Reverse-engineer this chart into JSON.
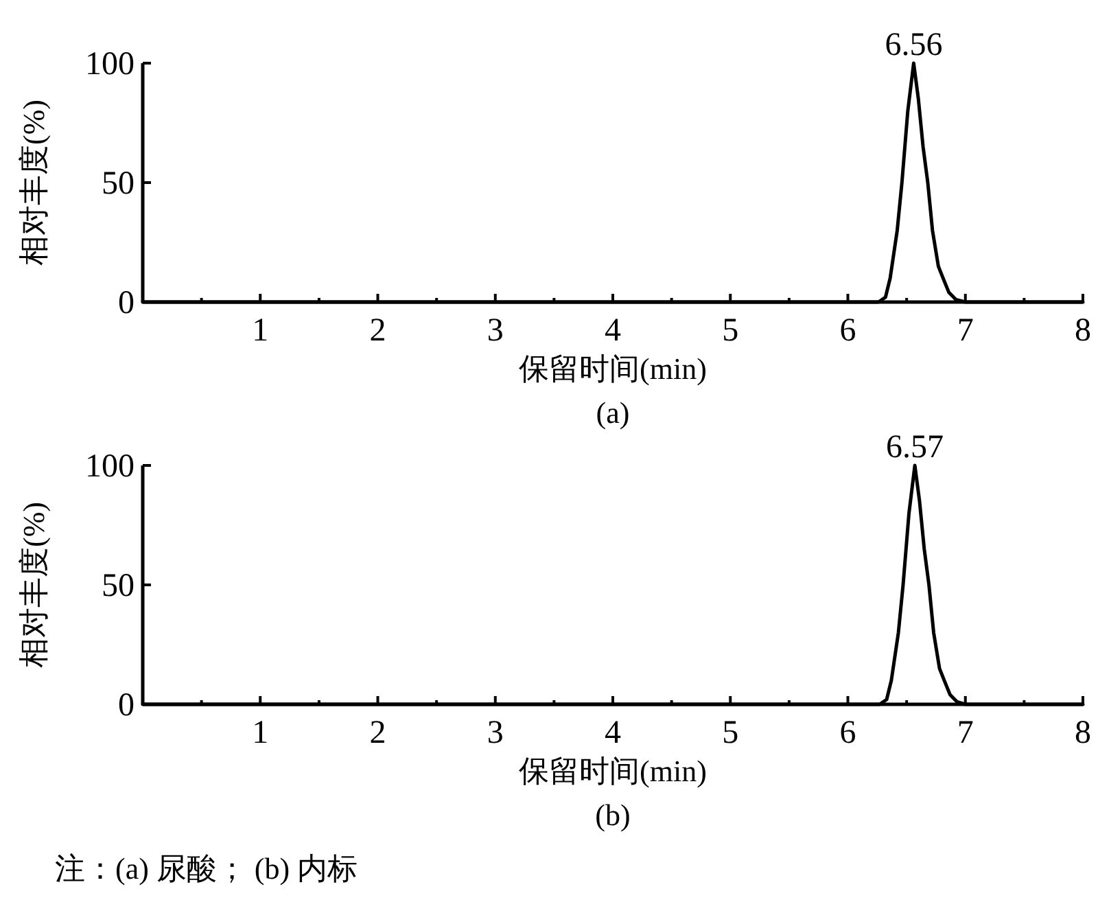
{
  "chart_data": [
    {
      "type": "line",
      "xlabel": "保留时间(min)",
      "ylabel": "相对丰度(%)",
      "xlim": [
        0,
        8
      ],
      "ylim": [
        0,
        100
      ],
      "xticks": [
        {
          "value": 0.5,
          "label": null
        },
        1,
        {
          "value": 1.5,
          "label": null
        },
        2,
        {
          "value": 2.5,
          "label": null
        },
        3,
        {
          "value": 3.5,
          "label": null
        },
        4,
        {
          "value": 4.5,
          "label": null
        },
        5,
        {
          "value": 5.5,
          "label": null
        },
        6,
        {
          "value": 6.5,
          "label": null
        },
        7,
        {
          "value": 7.5,
          "label": null
        },
        8
      ],
      "yticks": [
        0,
        50,
        100
      ],
      "series": [
        {
          "color": "#000000",
          "x": [
            0,
            6.2,
            6.26,
            6.32,
            6.36,
            6.42,
            6.46,
            6.51,
            6.56,
            6.6,
            6.64,
            6.68,
            6.72,
            6.77,
            6.81,
            6.86,
            6.92,
            7.0,
            8
          ],
          "values": [
            0,
            0,
            0,
            2,
            10,
            30,
            50,
            80,
            100,
            85,
            65,
            50,
            30,
            15,
            10,
            4,
            1,
            0,
            0
          ]
        }
      ],
      "annotations": [
        {
          "text": "6.56",
          "x": 6.56,
          "y": 100
        },
        "(a)"
      ]
    },
    {
      "type": "line",
      "xlabel": "保留时间(min)",
      "ylabel": "相对丰度(%)",
      "xlim": [
        0,
        8
      ],
      "ylim": [
        0,
        100
      ],
      "xticks": [
        {
          "value": 0.5,
          "label": null
        },
        1,
        {
          "value": 1.5,
          "label": null
        },
        2,
        {
          "value": 2.5,
          "label": null
        },
        3,
        {
          "value": 3.5,
          "label": null
        },
        4,
        {
          "value": 4.5,
          "label": null
        },
        5,
        {
          "value": 5.5,
          "label": null
        },
        6,
        {
          "value": 6.5,
          "label": null
        },
        7,
        {
          "value": 7.5,
          "label": null
        },
        8
      ],
      "yticks": [
        0,
        50,
        100
      ],
      "series": [
        {
          "color": "#000000",
          "x": [
            0,
            6.2,
            6.27,
            6.33,
            6.37,
            6.43,
            6.47,
            6.52,
            6.57,
            6.61,
            6.65,
            6.69,
            6.73,
            6.78,
            6.82,
            6.87,
            6.93,
            7.0,
            8
          ],
          "values": [
            0,
            0,
            0,
            2,
            10,
            30,
            50,
            80,
            100,
            85,
            65,
            50,
            30,
            15,
            10,
            4,
            1,
            0,
            0
          ]
        }
      ],
      "annotations": [
        {
          "text": "6.57",
          "x": 6.57,
          "y": 100
        },
        "(b)",
        "注：(a) 尿酸； (b) 内标"
      ]
    }
  ]
}
